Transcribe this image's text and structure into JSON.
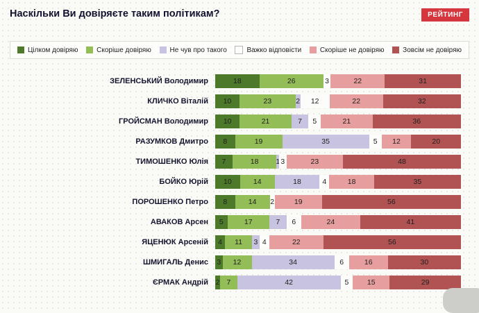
{
  "logo": {
    "text": "РЕЙТИНГ",
    "color": "#d6373f"
  },
  "chart_data": {
    "type": "bar",
    "stacked": true,
    "orientation": "horizontal",
    "unit": "%",
    "xlim": [
      0,
      100
    ],
    "title": "Наскільки Ви довіряєте таким політикам?",
    "legend_position": "top",
    "grid": false,
    "categories": [
      "ЗЕЛЕНСЬКИЙ Володимир",
      "КЛИЧКО Віталій",
      "ГРОЙСМАН Володимир",
      "РАЗУМКОВ Дмитро",
      "ТИМОШЕНКО Юлія",
      "БОЙКО Юрій",
      "ПОРОШЕНКО Петро",
      "АВАКОВ Арсен",
      "ЯЦЕНЮК Арсеній",
      "ШМИГАЛЬ Денис",
      "ЄРМАК Андрій"
    ],
    "series": [
      {
        "name": "Цілком довіряю",
        "color": "#4d7a2a",
        "values": [
          18,
          10,
          10,
          8,
          7,
          10,
          8,
          5,
          4,
          3,
          2
        ]
      },
      {
        "name": "Скоріше довіряю",
        "color": "#93bd57",
        "values": [
          26,
          23,
          21,
          19,
          18,
          14,
          14,
          17,
          11,
          12,
          7
        ]
      },
      {
        "name": "Не чув про такого",
        "color": "#c8c3e0",
        "values": [
          0,
          2,
          7,
          35,
          1,
          18,
          0,
          7,
          3,
          34,
          42
        ]
      },
      {
        "name": "Важко відповісти",
        "color": "#ffffff",
        "values": [
          3,
          12,
          5,
          5,
          3,
          4,
          2,
          6,
          4,
          6,
          5
        ]
      },
      {
        "name": "Скоріше не довіряю",
        "color": "#e79e9e",
        "values": [
          22,
          22,
          21,
          12,
          23,
          18,
          19,
          24,
          22,
          16,
          15
        ]
      },
      {
        "name": "Зовсім не довіряю",
        "color": "#b25353",
        "values": [
          31,
          32,
          36,
          20,
          48,
          35,
          56,
          41,
          56,
          30,
          29
        ]
      }
    ]
  }
}
